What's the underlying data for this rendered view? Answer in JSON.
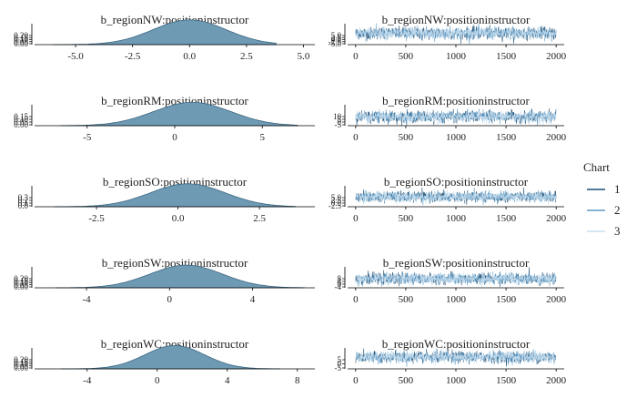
{
  "colors": {
    "density_fill": "#6f9ab4",
    "density_line": "#3d6782",
    "axis": "#000000",
    "text": "#222222",
    "chain1": "#1f4e73",
    "chain2": "#5f9ac3",
    "chain3": "#c4ddef"
  },
  "legend": {
    "title": "Chart",
    "items": [
      {
        "label": "1",
        "color": "#1f4e73"
      },
      {
        "label": "2",
        "color": "#5f9ac3"
      },
      {
        "label": "3",
        "color": "#c4ddef"
      }
    ]
  },
  "chart_data": [
    {
      "type": "area",
      "title": "b_regionNW:positioninstructor",
      "x_ticks": [
        -5.0,
        -2.5,
        0.0,
        2.5,
        5.0
      ],
      "x_tick_labels": [
        "-5.0",
        "-2.5",
        "0.0",
        "2.5",
        "5.0"
      ],
      "xlim": [
        -6.8,
        5.5
      ],
      "y_tick_labels": [
        "0.00",
        "0.05",
        "0.10",
        "0.15",
        "0.20"
      ],
      "ylim": [
        0,
        0.22
      ],
      "density": {
        "mean": 0.0,
        "sd": 1.6,
        "range": [
          -6.0,
          3.8
        ]
      }
    },
    {
      "type": "line",
      "title": "b_regionNW:positioninstructor",
      "x_ticks": [
        0,
        500,
        1000,
        1500,
        2000
      ],
      "xlim": [
        -80,
        2080
      ],
      "y_tick_labels": [
        "-5.0",
        "-2.5",
        "0.0",
        "2.5",
        "5.0"
      ],
      "ylim": [
        -6,
        5.5
      ],
      "trace": {
        "mean": 0.0,
        "sd": 1.6,
        "iterations": 2000,
        "chains": 3
      }
    },
    {
      "type": "area",
      "title": "b_regionRM:positioninstructor",
      "x_ticks": [
        -5,
        0,
        5
      ],
      "x_tick_labels": [
        "-5",
        "0",
        "5"
      ],
      "xlim": [
        -8,
        8
      ],
      "y_tick_labels": [
        "0.00",
        "0.05",
        "0.10",
        "0.15"
      ],
      "ylim": [
        0,
        0.17
      ],
      "density": {
        "mean": 1.0,
        "sd": 2.2,
        "range": [
          -6.5,
          7.0
        ]
      }
    },
    {
      "type": "line",
      "title": "b_regionRM:positioninstructor",
      "x_ticks": [
        0,
        500,
        1000,
        1500,
        2000
      ],
      "xlim": [
        -80,
        2080
      ],
      "y_tick_labels": [
        "-5",
        "0",
        "5",
        "10"
      ],
      "ylim": [
        -6,
        11
      ],
      "trace": {
        "mean": 1.0,
        "sd": 2.2,
        "iterations": 2000,
        "chains": 3
      }
    },
    {
      "type": "area",
      "title": "b_regionSO:positioninstructor",
      "x_ticks": [
        -2.5,
        0.0,
        2.5
      ],
      "x_tick_labels": [
        "-2.5",
        "0.0",
        "2.5"
      ],
      "xlim": [
        -4.4,
        4.2
      ],
      "y_tick_labels": [
        "0.0",
        "0.1",
        "0.2",
        "0.3"
      ],
      "ylim": [
        0,
        0.33
      ],
      "density": {
        "mean": 0.3,
        "sd": 1.15,
        "range": [
          -3.8,
          3.6
        ]
      }
    },
    {
      "type": "line",
      "title": "b_regionSO:positioninstructor",
      "x_ticks": [
        0,
        500,
        1000,
        1500,
        2000
      ],
      "xlim": [
        -80,
        2080
      ],
      "y_tick_labels": [
        "-2.5",
        "0.0",
        "2.5",
        "5.0"
      ],
      "ylim": [
        -4,
        5.5
      ],
      "trace": {
        "mean": 0.3,
        "sd": 1.15,
        "iterations": 2000,
        "chains": 3
      }
    },
    {
      "type": "area",
      "title": "b_regionSW:positioninstructor",
      "x_ticks": [
        -4,
        0,
        4
      ],
      "x_tick_labels": [
        "-4",
        "0",
        "4"
      ],
      "xlim": [
        -6.5,
        7.0
      ],
      "y_tick_labels": [
        "0.00",
        "0.05",
        "0.10",
        "0.15",
        "0.20"
      ],
      "ylim": [
        0,
        0.22
      ],
      "density": {
        "mean": 0.8,
        "sd": 1.75,
        "range": [
          -5.5,
          6.5
        ]
      }
    },
    {
      "type": "line",
      "title": "b_regionSW:positioninstructor",
      "x_ticks": [
        0,
        500,
        1000,
        1500,
        2000
      ],
      "xlim": [
        -80,
        2080
      ],
      "y_tick_labels": [
        "-4",
        "0",
        "4",
        "8"
      ],
      "ylim": [
        -5,
        9
      ],
      "trace": {
        "mean": 0.8,
        "sd": 1.75,
        "iterations": 2000,
        "chains": 3
      }
    },
    {
      "type": "area",
      "title": "b_regionWC:positioninstructor",
      "x_ticks": [
        -4,
        0,
        4,
        8
      ],
      "x_tick_labels": [
        "-4",
        "0",
        "4",
        "8"
      ],
      "xlim": [
        -7,
        9
      ],
      "y_tick_labels": [
        "0.00",
        "0.05",
        "0.10",
        "0.15",
        "0.20"
      ],
      "ylim": [
        0,
        0.22
      ],
      "density": {
        "mean": 1.0,
        "sd": 1.7,
        "range": [
          -5.5,
          7.0
        ]
      }
    },
    {
      "type": "line",
      "title": "b_regionWC:positioninstructor",
      "x_ticks": [
        0,
        500,
        1000,
        1500,
        2000
      ],
      "xlim": [
        -80,
        2080
      ],
      "y_tick_labels": [
        "-5",
        "0",
        "5"
      ],
      "ylim": [
        -6,
        7
      ],
      "trace": {
        "mean": 1.0,
        "sd": 1.7,
        "iterations": 2000,
        "chains": 3
      }
    }
  ]
}
